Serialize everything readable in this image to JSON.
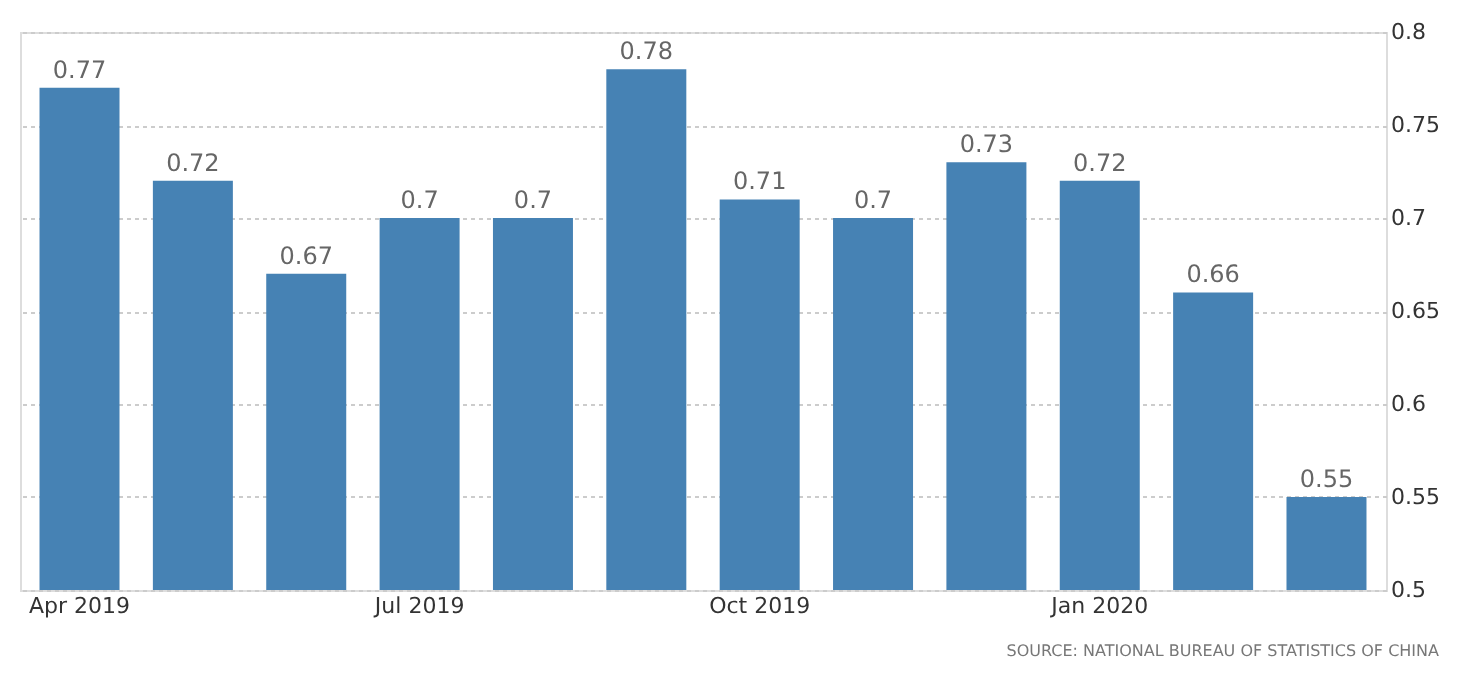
{
  "chart_data": {
    "type": "bar",
    "categories": [
      "Apr 2019",
      null,
      null,
      "Jul 2019",
      null,
      null,
      "Oct 2019",
      null,
      null,
      "Jan 2020",
      null,
      null
    ],
    "values": [
      0.77,
      0.72,
      0.67,
      0.7,
      0.7,
      0.78,
      0.71,
      0.7,
      0.73,
      0.72,
      0.66,
      0.55
    ],
    "color": "#4682b4",
    "ylim": [
      0.5,
      0.8
    ],
    "yticks": [
      0.5,
      0.55,
      0.6,
      0.65,
      0.7,
      0.75,
      0.8
    ],
    "data_labels": true,
    "grid": "y",
    "annotations": [
      "SOURCE: NATIONAL BUREAU OF STATISTICS OF CHINA"
    ]
  }
}
